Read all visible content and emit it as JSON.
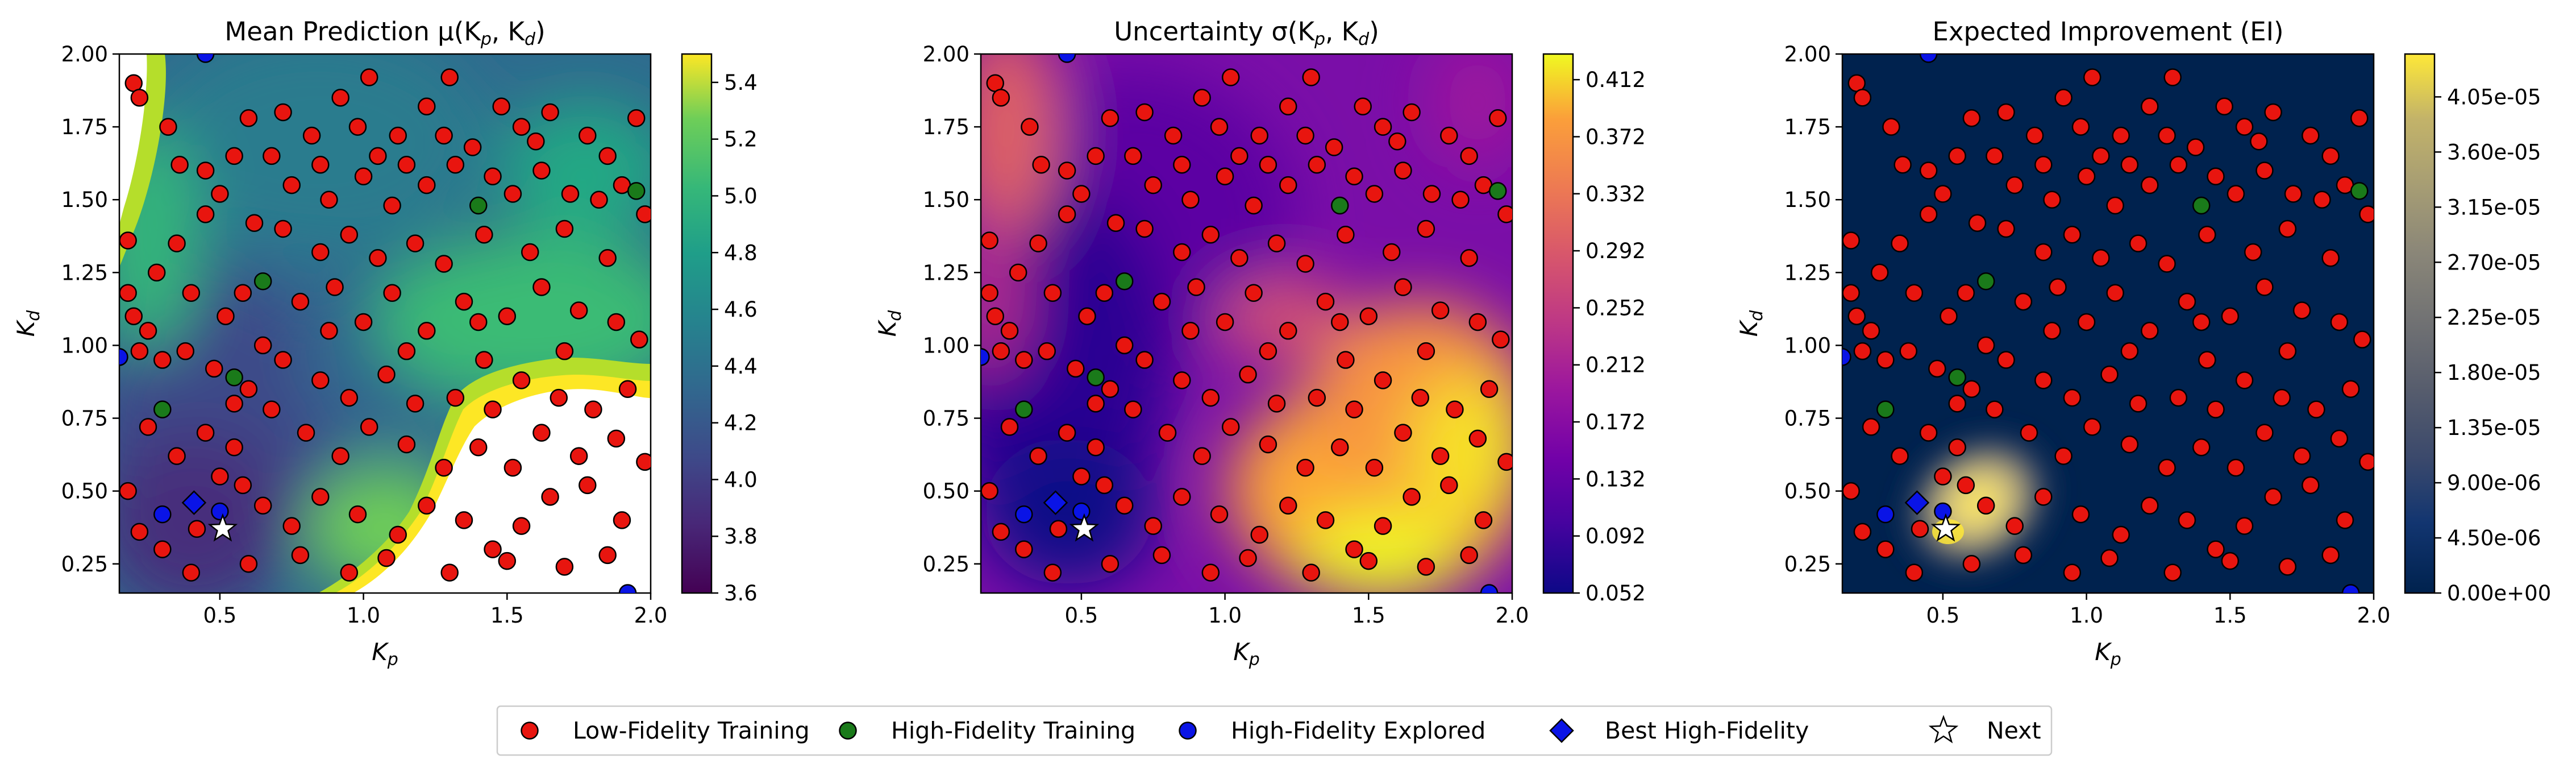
{
  "x_ticks": [
    "0.5",
    "1.0",
    "1.5",
    "2.0"
  ],
  "y_ticks": [
    "0.25",
    "0.50",
    "0.75",
    "1.00",
    "1.25",
    "1.50",
    "1.75",
    "2.00"
  ],
  "x_label": "K",
  "x_label_sub": "p",
  "y_label": "K",
  "y_label_sub": "d",
  "panels": [
    {
      "title": "Mean Prediction μ(K",
      "title_sub1": "p",
      "title_mid": ", K",
      "title_sub2": "d",
      "title_end": ")",
      "colormap": "viridis",
      "colorbar_ticks": [
        "3.6",
        "3.8",
        "4.0",
        "4.2",
        "4.4",
        "4.6",
        "4.8",
        "5.0",
        "5.2",
        "5.4"
      ]
    },
    {
      "title": "Uncertainty σ(K",
      "title_sub1": "p",
      "title_mid": ", K",
      "title_sub2": "d",
      "title_end": ")",
      "colormap": "plasma",
      "colorbar_ticks": [
        "0.052",
        "0.092",
        "0.132",
        "0.172",
        "0.212",
        "0.252",
        "0.292",
        "0.332",
        "0.372",
        "0.412"
      ]
    },
    {
      "title": "Expected Improvement (EI)",
      "title_sub1": "",
      "title_mid": "",
      "title_sub2": "",
      "title_end": "",
      "colormap": "cividis",
      "colorbar_ticks": [
        "0.00e+00",
        "4.50e-06",
        "9.00e-06",
        "1.35e-05",
        "1.80e-05",
        "2.25e-05",
        "2.70e-05",
        "3.15e-05",
        "3.60e-05",
        "4.05e-05"
      ]
    }
  ],
  "legend": [
    {
      "label": "Low-Fidelity Training",
      "marker": "circle",
      "color": "#e8150f"
    },
    {
      "label": "High-Fidelity Training",
      "marker": "circle",
      "color": "#1a7a1a"
    },
    {
      "label": "High-Fidelity Explored",
      "marker": "circle",
      "color": "#0a14e6"
    },
    {
      "label": "Best High-Fidelity",
      "marker": "diamond",
      "color": "#0a14e6"
    },
    {
      "label": "Next",
      "marker": "star",
      "color": "#ffffff"
    }
  ],
  "chart_data": {
    "type": "scatter",
    "xlim": [
      0.15,
      2.0
    ],
    "ylim": [
      0.15,
      2.0
    ],
    "colorbar_ranges": [
      [
        3.6,
        5.5
      ],
      [
        0.052,
        0.43
      ],
      [
        0.0,
        4.4e-05
      ]
    ],
    "low_fidelity": [
      [
        0.2,
        1.9
      ],
      [
        0.22,
        1.85
      ],
      [
        0.32,
        1.75
      ],
      [
        0.36,
        1.62
      ],
      [
        0.5,
        1.52
      ],
      [
        0.55,
        1.65
      ],
      [
        0.6,
        1.78
      ],
      [
        0.68,
        1.65
      ],
      [
        0.72,
        1.8
      ],
      [
        0.82,
        1.72
      ],
      [
        0.92,
        1.85
      ],
      [
        0.98,
        1.75
      ],
      [
        1.05,
        1.65
      ],
      [
        1.12,
        1.72
      ],
      [
        1.22,
        1.82
      ],
      [
        1.28,
        1.72
      ],
      [
        1.38,
        1.68
      ],
      [
        1.48,
        1.82
      ],
      [
        1.55,
        1.75
      ],
      [
        1.65,
        1.8
      ],
      [
        1.78,
        1.72
      ],
      [
        1.85,
        1.65
      ],
      [
        1.95,
        1.78
      ],
      [
        1.02,
        1.92
      ],
      [
        1.3,
        1.92
      ],
      [
        0.75,
        1.55
      ],
      [
        0.88,
        1.5
      ],
      [
        1.0,
        1.58
      ],
      [
        1.1,
        1.48
      ],
      [
        1.22,
        1.55
      ],
      [
        1.32,
        1.62
      ],
      [
        1.45,
        1.58
      ],
      [
        1.52,
        1.52
      ],
      [
        1.62,
        1.6
      ],
      [
        1.72,
        1.52
      ],
      [
        1.82,
        1.5
      ],
      [
        1.9,
        1.55
      ],
      [
        0.35,
        1.35
      ],
      [
        0.45,
        1.45
      ],
      [
        0.62,
        1.42
      ],
      [
        0.72,
        1.4
      ],
      [
        0.85,
        1.32
      ],
      [
        0.95,
        1.38
      ],
      [
        1.05,
        1.3
      ],
      [
        1.18,
        1.35
      ],
      [
        1.28,
        1.28
      ],
      [
        1.42,
        1.38
      ],
      [
        1.58,
        1.32
      ],
      [
        1.7,
        1.4
      ],
      [
        1.85,
        1.3
      ],
      [
        0.18,
        1.36
      ],
      [
        0.28,
        1.25
      ],
      [
        0.4,
        1.18
      ],
      [
        0.52,
        1.1
      ],
      [
        0.58,
        1.18
      ],
      [
        0.78,
        1.15
      ],
      [
        0.9,
        1.2
      ],
      [
        1.0,
        1.08
      ],
      [
        1.1,
        1.18
      ],
      [
        1.22,
        1.05
      ],
      [
        1.35,
        1.15
      ],
      [
        1.5,
        1.1
      ],
      [
        1.62,
        1.2
      ],
      [
        1.75,
        1.12
      ],
      [
        1.88,
        1.08
      ],
      [
        1.96,
        1.02
      ],
      [
        0.18,
        1.18
      ],
      [
        0.2,
        1.1
      ],
      [
        0.25,
        1.05
      ],
      [
        0.22,
        0.98
      ],
      [
        0.38,
        0.98
      ],
      [
        0.48,
        0.92
      ],
      [
        0.6,
        0.85
      ],
      [
        0.72,
        0.95
      ],
      [
        0.85,
        0.88
      ],
      [
        0.95,
        0.82
      ],
      [
        1.08,
        0.9
      ],
      [
        1.18,
        0.8
      ],
      [
        1.32,
        0.82
      ],
      [
        1.45,
        0.78
      ],
      [
        1.55,
        0.88
      ],
      [
        1.68,
        0.82
      ],
      [
        1.8,
        0.78
      ],
      [
        1.92,
        0.85
      ],
      [
        0.25,
        0.72
      ],
      [
        0.35,
        0.62
      ],
      [
        0.45,
        0.7
      ],
      [
        0.55,
        0.65
      ],
      [
        0.68,
        0.78
      ],
      [
        0.8,
        0.7
      ],
      [
        0.92,
        0.62
      ],
      [
        1.02,
        0.72
      ],
      [
        1.15,
        0.66
      ],
      [
        1.28,
        0.58
      ],
      [
        1.4,
        0.65
      ],
      [
        1.52,
        0.58
      ],
      [
        1.62,
        0.7
      ],
      [
        1.75,
        0.62
      ],
      [
        1.88,
        0.68
      ],
      [
        1.98,
        0.6
      ],
      [
        0.18,
        0.5
      ],
      [
        0.22,
        0.36
      ],
      [
        0.3,
        0.3
      ],
      [
        0.42,
        0.37
      ],
      [
        0.5,
        0.55
      ],
      [
        0.58,
        0.52
      ],
      [
        0.65,
        0.45
      ],
      [
        0.75,
        0.38
      ],
      [
        0.85,
        0.48
      ],
      [
        0.98,
        0.42
      ],
      [
        1.12,
        0.35
      ],
      [
        1.22,
        0.45
      ],
      [
        1.35,
        0.4
      ],
      [
        1.45,
        0.3
      ],
      [
        1.55,
        0.38
      ],
      [
        1.65,
        0.48
      ],
      [
        1.78,
        0.52
      ],
      [
        1.9,
        0.4
      ],
      [
        0.4,
        0.22
      ],
      [
        0.6,
        0.25
      ],
      [
        0.78,
        0.28
      ],
      [
        0.95,
        0.22
      ],
      [
        1.08,
        0.27
      ],
      [
        1.3,
        0.22
      ],
      [
        1.5,
        0.26
      ],
      [
        1.7,
        0.24
      ],
      [
        1.85,
        0.28
      ],
      [
        0.3,
        0.95
      ],
      [
        0.65,
        1.0
      ],
      [
        0.88,
        1.05
      ],
      [
        1.15,
        0.98
      ],
      [
        1.42,
        0.95
      ],
      [
        1.7,
        0.98
      ],
      [
        0.45,
        1.6
      ],
      [
        0.85,
        1.62
      ],
      [
        1.15,
        1.62
      ],
      [
        1.6,
        1.7
      ],
      [
        1.98,
        1.45
      ],
      [
        1.4,
        1.08
      ],
      [
        0.55,
        0.8
      ]
    ],
    "high_fidelity_training": [
      [
        1.4,
        1.48
      ],
      [
        0.65,
        1.22
      ],
      [
        0.55,
        0.89
      ],
      [
        0.3,
        0.78
      ],
      [
        1.95,
        1.53
      ]
    ],
    "high_fidelity_explored": [
      [
        0.3,
        0.42
      ],
      [
        0.5,
        0.43
      ],
      [
        0.15,
        0.96
      ],
      [
        1.92,
        0.15
      ],
      [
        0.45,
        2.0
      ]
    ],
    "best_high_fidelity": [
      [
        0.41,
        0.46
      ]
    ],
    "next_point": [
      [
        0.51,
        0.37
      ]
    ]
  }
}
